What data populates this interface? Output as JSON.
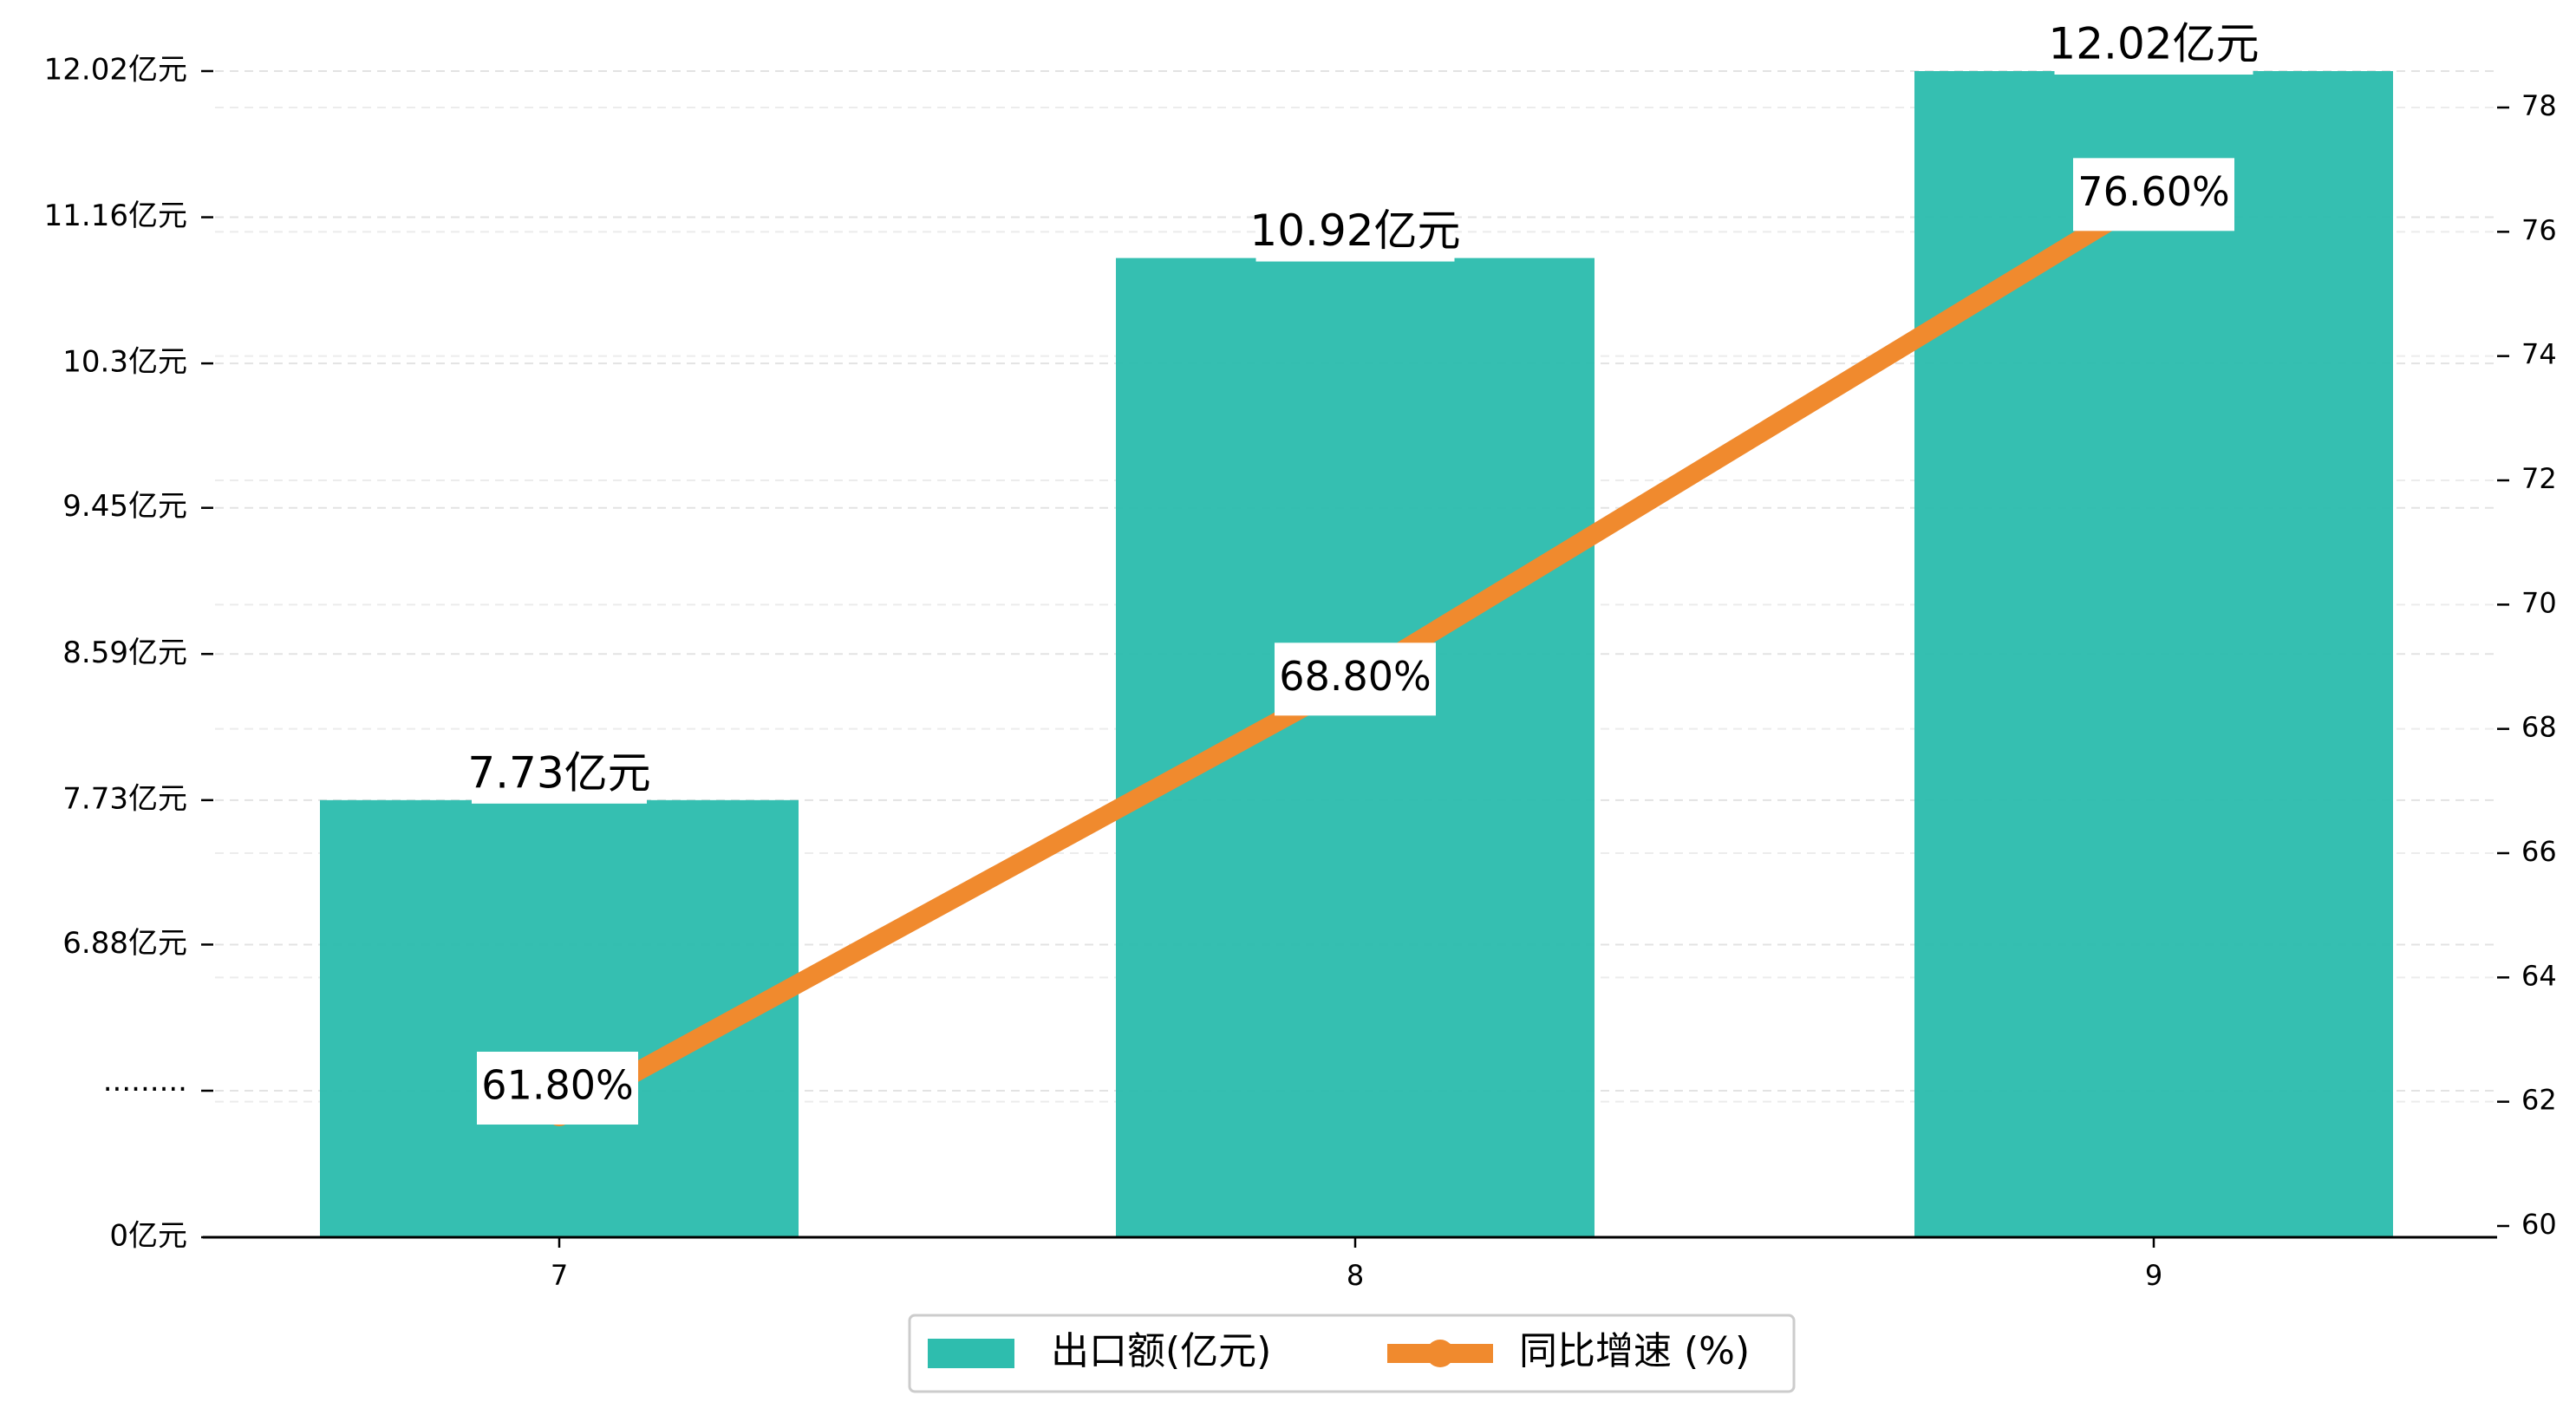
{
  "chart_data": {
    "type": "bar",
    "categories": [
      "7",
      "8",
      "9"
    ],
    "series": [
      {
        "name": "出口额(亿元)",
        "type": "bar",
        "axis": "left",
        "color": "#2ebdae",
        "values": [
          7.73,
          10.92,
          12.02
        ],
        "labels": [
          "7.73亿元",
          "10.92亿元",
          "12.02亿元"
        ]
      },
      {
        "name": "同比增速 (%)",
        "type": "line",
        "axis": "right",
        "color": "#f08a2e",
        "values": [
          61.8,
          68.8,
          76.6
        ],
        "labels": [
          "61.80%",
          "68.80%",
          "76.60%"
        ]
      }
    ],
    "left_axis": {
      "note": "broken axis: bottom segment 0 to 6.02, then linear 6.02 to 12.02",
      "ticks": [
        {
          "value": 0,
          "label": "0亿元"
        },
        {
          "value": 6.02,
          "label": "·········"
        },
        {
          "value": 6.88,
          "label": "6.88亿元"
        },
        {
          "value": 7.73,
          "label": "7.73亿元"
        },
        {
          "value": 8.59,
          "label": "8.59亿元"
        },
        {
          "value": 9.45,
          "label": "9.45亿元"
        },
        {
          "value": 10.3,
          "label": "10.3亿元"
        },
        {
          "value": 11.16,
          "label": "11.16亿元"
        },
        {
          "value": 12.02,
          "label": "12.02亿元"
        }
      ]
    },
    "right_axis": {
      "ylim": [
        60,
        78.6
      ],
      "ticks": [
        60,
        62,
        64,
        66,
        68,
        70,
        72,
        74,
        76,
        78
      ]
    },
    "grid": true,
    "legend_position": "bottom-center"
  }
}
